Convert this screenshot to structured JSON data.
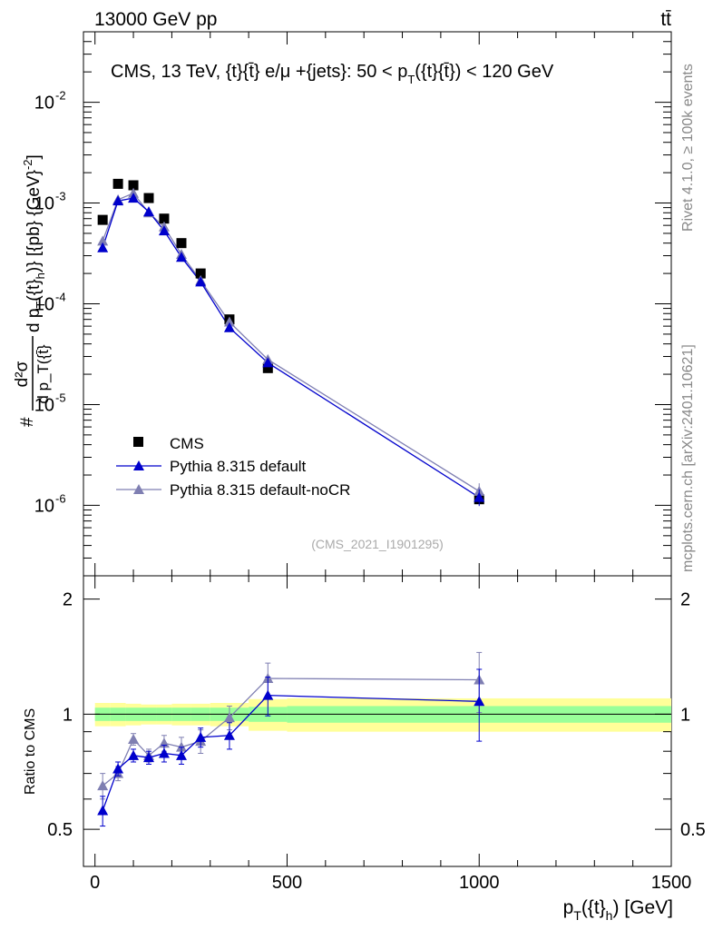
{
  "header": {
    "left": "13000 GeV pp",
    "right": "tt̄"
  },
  "side_labels": {
    "rivet": "Rivet 4.1.0, ≥ 100k events",
    "mcplots": "mcplots.cern.ch [arXiv:2401.10621]"
  },
  "chart_data": {
    "type": "scatter",
    "title": "CMS, 13 TeV, {t}{t̄} e/μ +{jets}: 50 <  p_T({t}{t̄}) < 120 GeV",
    "title_parts": {
      "main": "CMS, 13 TeV, {t}{t̄} e/μ +{jets}: 50 <  p",
      "sub": "T",
      "tail": "({t}{t̄}) < 120 GeV"
    },
    "ylabel": "#d²σ / d p_T({t̄}) d p_T({t}_h)} [{pb} {GeV}⁻²]",
    "ylabel_parts": {
      "a": "#",
      "num": "d²σ",
      "den": "d p_T({t̄}",
      "b": "d p",
      "c": "T",
      "d": "({t}",
      "e": "h",
      "f": ")} [{pb} {GeV}",
      "g": "-2",
      "h": "]"
    },
    "xlabel": "p_T({t}_h) [GeV]",
    "xlabel_parts": {
      "a": "p",
      "b": "T",
      "c": "({t}",
      "d": "h",
      "e": ") [GeV]"
    },
    "ratio_ylabel": "Ratio to CMS",
    "watermark": "(CMS_2021_I1901295)",
    "xlim": [
      -30,
      1500
    ],
    "ylim": [
      2e-07,
      0.05
    ],
    "ratio_ylim": [
      0.4,
      2.3
    ],
    "x_ticks": [
      "0",
      "500",
      "1000",
      "1500"
    ],
    "y_ticks": [
      "10",
      "10",
      "10",
      "10",
      "10"
    ],
    "y_tick_exponents": [
      "-2",
      "-3",
      "-4",
      "-5",
      "-6"
    ],
    "ratio_ticks": [
      "0.5",
      "1",
      "2"
    ],
    "legend": [
      "CMS",
      "Pythia 8.315 default",
      "Pythia 8.315 default-noCR"
    ],
    "colors": {
      "data": "#000000",
      "default": "#0000cc",
      "nocr": "#7f7fb2",
      "band_inner": "#99ff99",
      "band_outer": "#ffff99"
    },
    "x": [
      20,
      60,
      100,
      140,
      180,
      225,
      275,
      350,
      450,
      1000
    ],
    "x_edges": [
      0,
      40,
      80,
      120,
      160,
      200,
      250,
      300,
      400,
      500,
      1500
    ],
    "series": [
      {
        "name": "CMS",
        "values": [
          0.00068,
          0.00155,
          0.0015,
          0.00112,
          0.0007,
          0.0004,
          0.0002,
          7e-05,
          2.3e-05,
          1.15e-06
        ],
        "err_rel": [
          0.05,
          0.05,
          0.05,
          0.05,
          0.05,
          0.05,
          0.05,
          0.05,
          0.05,
          0.1
        ]
      },
      {
        "name": "Pythia 8.315 default",
        "values": [
          0.00036,
          0.00105,
          0.00112,
          0.00082,
          0.00053,
          0.00029,
          0.000165,
          5.8e-05,
          2.6e-05,
          1.2e-06
        ],
        "ratio": [
          0.56,
          0.72,
          0.78,
          0.77,
          0.79,
          0.78,
          0.87,
          0.88,
          1.12,
          1.08
        ],
        "ratio_err": [
          0.05,
          0.03,
          0.03,
          0.03,
          0.04,
          0.04,
          0.05,
          0.07,
          0.13,
          0.23
        ]
      },
      {
        "name": "Pythia 8.315 default-noCR",
        "values": [
          0.00042,
          0.00108,
          0.00125,
          0.0008,
          0.00058,
          0.00031,
          0.00017,
          6.6e-05,
          2.8e-05,
          1.38e-06
        ],
        "ratio": [
          0.65,
          0.7,
          0.86,
          0.78,
          0.84,
          0.82,
          0.85,
          0.98,
          1.24,
          1.23
        ],
        "ratio_err": [
          0.05,
          0.03,
          0.03,
          0.03,
          0.04,
          0.05,
          0.06,
          0.07,
          0.12,
          0.22
        ]
      }
    ],
    "band_inner_half": [
      0.04,
      0.04,
      0.04,
      0.04,
      0.04,
      0.04,
      0.04,
      0.04,
      0.045,
      0.05
    ],
    "band_outer_half": [
      0.07,
      0.07,
      0.065,
      0.06,
      0.06,
      0.065,
      0.065,
      0.07,
      0.095,
      0.1
    ]
  }
}
